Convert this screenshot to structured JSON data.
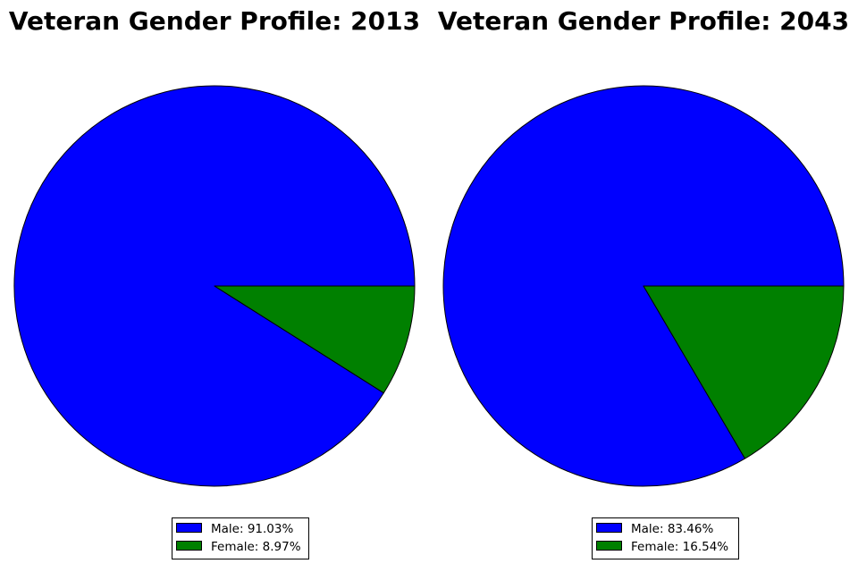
{
  "chart_data": [
    {
      "type": "pie",
      "title": "Veteran Gender Profile: 2013",
      "categories": [
        "Male",
        "Female"
      ],
      "values": [
        91.03,
        8.97
      ],
      "legend_labels": [
        "Male: 91.03%",
        "Female: 8.97%"
      ],
      "colors": [
        "#0000ff",
        "#008000"
      ],
      "legend_position": "bottom"
    },
    {
      "type": "pie",
      "title": "Veteran Gender Profile: 2043",
      "categories": [
        "Male",
        "Female"
      ],
      "values": [
        83.46,
        16.54
      ],
      "legend_labels": [
        "Male: 83.46%",
        "Female: 16.54%"
      ],
      "colors": [
        "#0000ff",
        "#008000"
      ],
      "legend_position": "bottom"
    }
  ]
}
